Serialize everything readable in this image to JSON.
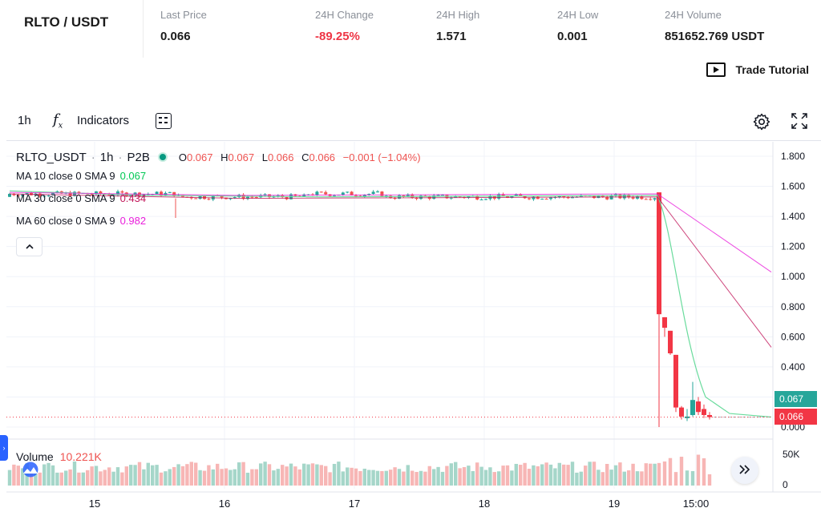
{
  "ticker": {
    "pair": "RLTO / USDT",
    "stats": [
      {
        "label": "Last Price",
        "value": "0.066"
      },
      {
        "label": "24H Change",
        "value": "-89.25%"
      },
      {
        "label": "24H High",
        "value": "1.571"
      },
      {
        "label": "24H Low",
        "value": "0.001"
      },
      {
        "label": "24H Volume",
        "value": "851652.769 USDT"
      }
    ],
    "trade_tutorial": "Trade Tutorial"
  },
  "toolbar": {
    "interval": "1h",
    "fx_icon": "fx-icon",
    "indicators_label": "Indicators",
    "layout_icon": "layout-icon",
    "settings_icon": "gear-icon",
    "fullscreen_icon": "fullscreen-icon"
  },
  "legend": {
    "symbol": "RLTO_USDT",
    "interval": "1h",
    "exchange": "P2B",
    "ohlc": {
      "o": "0.067",
      "h": "0.067",
      "l": "0.066",
      "c": "0.066",
      "change": "−0.001 (−1.04%)"
    },
    "ma": [
      {
        "label": "MA 10 close 0 SMA 9",
        "value": "0.067",
        "color": "#00c853"
      },
      {
        "label": "MA 30 close 0 SMA 9",
        "value": "0.434",
        "color": "#c2185b"
      },
      {
        "label": "MA 60 close 0 SMA 9",
        "value": "0.982",
        "color": "#e91edb"
      }
    ],
    "volume_label": "Volume",
    "volume_value": "10.221K",
    "collapse_icon": "chevron-up-icon"
  },
  "colors": {
    "up": "#26a69a",
    "down": "#ef5350",
    "volume_up": "#a5d6c9",
    "volume_down": "#f7b6b5"
  },
  "price_tags": {
    "ma10": "0.067",
    "last": "0.066"
  },
  "chart_data": {
    "type": "candlestick",
    "price_axis": {
      "ticks": [
        "1.800",
        "1.600",
        "1.400",
        "1.200",
        "1.000",
        "0.800",
        "0.600",
        "0.400",
        "0.200",
        "0.000"
      ],
      "range": [
        0,
        1.8
      ]
    },
    "volume_axis": {
      "ticks": [
        "50K",
        "0"
      ]
    },
    "time_axis": {
      "ticks": [
        "15",
        "16",
        "17",
        "18",
        "19",
        "15:00"
      ]
    },
    "series": [
      {
        "name": "MA 10 close 0 SMA 9",
        "last": 0.067
      },
      {
        "name": "MA 30 close 0 SMA 9",
        "last": 0.434
      },
      {
        "name": "MA 60 close 0 SMA 9",
        "last": 0.982
      }
    ],
    "pre_crash_level": 1.53,
    "crash_candles": [
      {
        "o": 1.56,
        "h": 1.56,
        "l": 0.0,
        "c": 0.75
      },
      {
        "o": 0.73,
        "h": 0.73,
        "l": 0.6,
        "c": 0.66
      },
      {
        "o": 0.64,
        "h": 0.64,
        "l": 0.48,
        "c": 0.49
      },
      {
        "o": 0.48,
        "h": 0.48,
        "l": 0.1,
        "c": 0.13
      },
      {
        "o": 0.13,
        "h": 0.14,
        "l": 0.05,
        "c": 0.07
      },
      {
        "o": 0.07,
        "h": 0.12,
        "l": 0.04,
        "c": 0.07
      },
      {
        "o": 0.08,
        "h": 0.3,
        "l": 0.07,
        "c": 0.18
      },
      {
        "o": 0.17,
        "h": 0.2,
        "l": 0.08,
        "c": 0.1
      },
      {
        "o": 0.12,
        "h": 0.15,
        "l": 0.06,
        "c": 0.08
      },
      {
        "o": 0.08,
        "h": 0.1,
        "l": 0.05,
        "c": 0.066
      }
    ]
  }
}
